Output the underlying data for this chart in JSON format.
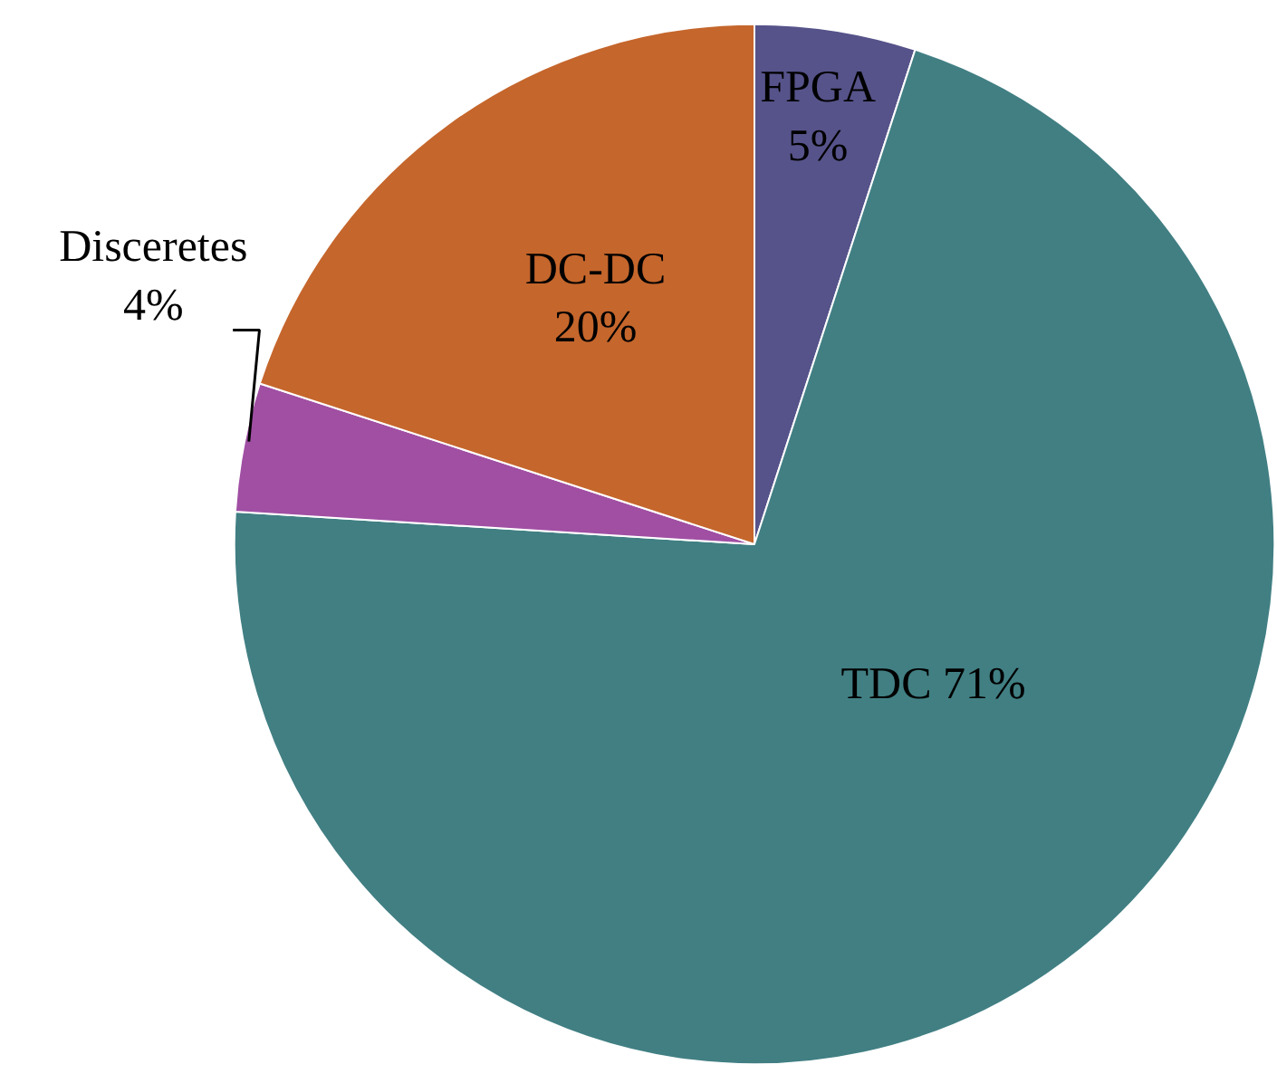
{
  "chart_data": {
    "type": "pie",
    "categories": [
      "FPGA",
      "TDC",
      "Disceretes",
      "DC-DC"
    ],
    "values": [
      5,
      71,
      4,
      20
    ],
    "value_labels": [
      "5%",
      "71%",
      "4%",
      "20%"
    ],
    "colors": [
      "#56538a",
      "#417f83",
      "#a04fa3",
      "#c5662c"
    ],
    "legend": false
  }
}
